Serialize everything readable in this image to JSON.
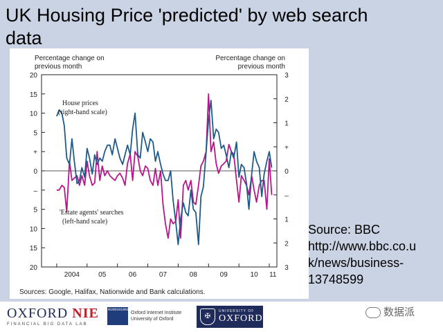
{
  "slide": {
    "title": "UK Housing Price 'predicted' by web search data",
    "source_lines": [
      "Source: BBC",
      "http://www.bbc.co.u",
      "k/news/business-",
      "13748599"
    ],
    "watermark": "数据派"
  },
  "logos": {
    "oxford_nie_a": "OXFORD",
    "oxford_nie_b": "NIE",
    "oxford_nie_sub": "FINANCIAL BIG DATA LAB",
    "oii_mark": "01001010010101101001011010010",
    "oii_line1": "Oxford Internet Institute",
    "oii_line2": "University of Oxford",
    "uo_small": "UNIVERSITY OF",
    "uo_big": "OXFORD"
  },
  "chart_data": {
    "type": "line",
    "left_axis_label": [
      "Percentage change on",
      "previous month"
    ],
    "right_axis_label": [
      "Percentage change on",
      "previous month"
    ],
    "left_ticks": [
      "20",
      "15",
      "10",
      "5",
      "+",
      "0",
      "–",
      "5",
      "10",
      "15",
      "20"
    ],
    "left_ylim": [
      -20,
      20
    ],
    "right_ticks": [
      "3",
      "2",
      "1",
      "+",
      "0",
      "–",
      "1",
      "2",
      "3"
    ],
    "right_ylim": [
      -3,
      3
    ],
    "x_ticks": [
      "2004",
      "05",
      "06",
      "07",
      "08",
      "09",
      "10",
      "11"
    ],
    "xlim": [
      2003.5,
      2011.25
    ],
    "annotations": {
      "house_prices": [
        "House prices",
        "(right-hand scale)"
      ],
      "estate_agents": [
        "'Estate agents' searches",
        "(left-hand scale)"
      ]
    },
    "footnote": "Sources: Google, Halifax, Nationwide and Bank calculations.",
    "series": [
      {
        "name": "House prices",
        "axis": "right",
        "color": "#1d5a8a",
        "x": [
          2004.0,
          2004.08,
          2004.17,
          2004.25,
          2004.33,
          2004.42,
          2004.5,
          2004.58,
          2004.67,
          2004.75,
          2004.83,
          2004.92,
          2005.0,
          2005.08,
          2005.17,
          2005.25,
          2005.33,
          2005.42,
          2005.5,
          2005.58,
          2005.67,
          2005.75,
          2005.83,
          2005.92,
          2006.0,
          2006.08,
          2006.17,
          2006.25,
          2006.33,
          2006.42,
          2006.5,
          2006.58,
          2006.67,
          2006.75,
          2006.83,
          2006.92,
          2007.0,
          2007.08,
          2007.17,
          2007.25,
          2007.33,
          2007.42,
          2007.5,
          2007.58,
          2007.67,
          2007.75,
          2007.83,
          2007.92,
          2008.0,
          2008.08,
          2008.17,
          2008.25,
          2008.33,
          2008.42,
          2008.5,
          2008.58,
          2008.67,
          2008.75,
          2008.83,
          2008.92,
          2009.0,
          2009.08,
          2009.17,
          2009.25,
          2009.33,
          2009.42,
          2009.5,
          2009.58,
          2009.67,
          2009.75,
          2009.83,
          2009.92,
          2010.0,
          2010.08,
          2010.17,
          2010.25,
          2010.33,
          2010.42,
          2010.5,
          2010.58,
          2010.67,
          2010.75,
          2010.83,
          2010.92,
          2011.0,
          2011.08
        ],
        "values": [
          1.7,
          1.9,
          1.8,
          1.4,
          0.4,
          0.2,
          1.0,
          0.3,
          -0.4,
          -0.3,
          0.1,
          -0.2,
          0.7,
          0.4,
          -0.1,
          0.5,
          0.2,
          0.4,
          0.3,
          0.6,
          0.8,
          0.8,
          0.5,
          1.0,
          0.7,
          0.4,
          0.2,
          0.5,
          0.8,
          0.5,
          1.3,
          1.8,
          0.5,
          0.4,
          1.2,
          0.9,
          0.6,
          1.0,
          0.9,
          0.3,
          0.6,
          0.2,
          -0.1,
          -0.3,
          -0.3,
          0.0,
          -0.9,
          -1.6,
          -2.3,
          -1.5,
          -1.0,
          -1.3,
          -1.4,
          -0.6,
          -1.2,
          -1.3,
          -2.3,
          -0.8,
          -0.5,
          0.6,
          1.6,
          2.2,
          1.0,
          1.3,
          1.2,
          0.7,
          0.8,
          0.5,
          0.1,
          0.6,
          0.4,
          0.9,
          -0.2,
          0.2,
          0.1,
          -0.4,
          -1.2,
          -0.1,
          0.6,
          0.3,
          0.1,
          -0.8,
          -0.1,
          0.3,
          0.6,
          0.1
        ]
      },
      {
        "name": "'Estate agents' searches",
        "axis": "left",
        "color": "#b7158a",
        "x": [
          2004.0,
          2004.08,
          2004.17,
          2004.25,
          2004.33,
          2004.42,
          2004.5,
          2004.58,
          2004.67,
          2004.75,
          2004.83,
          2004.92,
          2005.0,
          2005.08,
          2005.17,
          2005.25,
          2005.33,
          2005.42,
          2005.5,
          2005.58,
          2005.67,
          2005.75,
          2005.83,
          2005.92,
          2006.0,
          2006.08,
          2006.17,
          2006.25,
          2006.33,
          2006.42,
          2006.5,
          2006.58,
          2006.67,
          2006.75,
          2006.83,
          2006.92,
          2007.0,
          2007.08,
          2007.17,
          2007.25,
          2007.33,
          2007.42,
          2007.5,
          2007.58,
          2007.67,
          2007.75,
          2007.83,
          2007.92,
          2008.0,
          2008.08,
          2008.17,
          2008.25,
          2008.33,
          2008.42,
          2008.5,
          2008.58,
          2008.67,
          2008.75,
          2008.83,
          2008.92,
          2009.0,
          2009.08,
          2009.17,
          2009.25,
          2009.33,
          2009.42,
          2009.5,
          2009.58,
          2009.67,
          2009.75,
          2009.83,
          2009.92,
          2010.0,
          2010.08,
          2010.17,
          2010.25,
          2010.33,
          2010.42,
          2010.5,
          2010.58,
          2010.67,
          2010.75,
          2010.83,
          2010.92,
          2011.0,
          2011.08
        ],
        "values": [
          -4.0,
          -4.0,
          -3.0,
          -3.5,
          -8.5,
          2.0,
          -2.0,
          -1.5,
          -1.0,
          -3.0,
          -1.0,
          -3.0,
          2.0,
          -1.0,
          -3.0,
          -2.5,
          4.0,
          -2.0,
          1.0,
          -1.0,
          0.0,
          -1.0,
          -1.5,
          -2.0,
          -1.0,
          -0.5,
          -1.5,
          -3.0,
          1.5,
          3.5,
          -2.0,
          4.0,
          3.0,
          0.0,
          -1.0,
          1.0,
          0.5,
          -2.0,
          -3.0,
          0.5,
          -3.0,
          0.0,
          -7.0,
          -11.0,
          -14.0,
          -10.0,
          -11.0,
          -10.5,
          -6.0,
          -14.0,
          -3.0,
          -2.0,
          -4.0,
          -2.0,
          -6.5,
          -7.0,
          -3.0,
          1.0,
          2.0,
          4.0,
          16.0,
          4.0,
          6.0,
          1.5,
          -0.5,
          1.0,
          1.5,
          2.0,
          5.5,
          4.0,
          3.5,
          -2.0,
          -6.5,
          -1.0,
          -2.0,
          -3.0,
          -5.0,
          -1.0,
          -4.0,
          -6.5,
          -3.0,
          -2.0,
          -2.0,
          -8.0,
          2.5,
          -5.0
        ]
      }
    ]
  }
}
